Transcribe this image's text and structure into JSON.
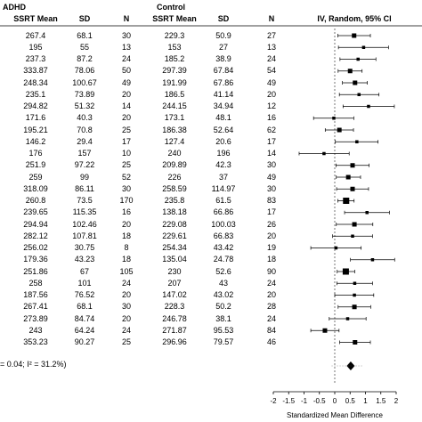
{
  "headers": {
    "group1": "ADHD",
    "group2": "Control",
    "col_mean1": "SSRT Mean",
    "col_sd1": "SD",
    "col_n1": "N",
    "col_mean2": "SSRT Mean",
    "col_sd2": "SD",
    "col_n2": "N",
    "col_ci": "IV, Random, 95% CI"
  },
  "heterogeneity_text": "= 0.04; I² = 31.2%)",
  "chart_data": {
    "type": "forest",
    "xlabel": "Standardized Mean Difference",
    "xlim": [
      -2,
      2
    ],
    "xticks": [
      -2,
      -1.5,
      -1,
      -0.5,
      0,
      0.5,
      1,
      1.5,
      2
    ],
    "xtick_labels": [
      "-2",
      "-1.5",
      "-1",
      "-0.5",
      "0",
      "0.5",
      "1",
      "1.5",
      "2"
    ],
    "rows": [
      {
        "m1": "267.4",
        "sd1": "68.1",
        "n1": "30",
        "m2": "229.3",
        "sd2": "50.9",
        "n2": "27",
        "est": 0.63,
        "lo": 0.1,
        "hi": 1.16,
        "w": "m"
      },
      {
        "m1": "195",
        "sd1": "55",
        "n1": "13",
        "m2": "153",
        "sd2": "27",
        "n2": "13",
        "est": 0.94,
        "lo": 0.12,
        "hi": 1.75,
        "w": "s"
      },
      {
        "m1": "237.3",
        "sd1": "87.2",
        "n1": "24",
        "m2": "185.2",
        "sd2": "38.9",
        "n2": "24",
        "est": 0.76,
        "lo": 0.17,
        "hi": 1.34,
        "w": "s"
      },
      {
        "m1": "333.87",
        "sd1": "78.06",
        "n1": "50",
        "m2": "297.39",
        "sd2": "67.84",
        "n2": "54",
        "est": 0.5,
        "lo": 0.11,
        "hi": 0.89,
        "w": "m"
      },
      {
        "m1": "248.34",
        "sd1": "100.67",
        "n1": "49",
        "m2": "191.99",
        "sd2": "67.86",
        "n2": "49",
        "est": 0.66,
        "lo": 0.25,
        "hi": 1.06,
        "w": "m"
      },
      {
        "m1": "235.1",
        "sd1": "73.89",
        "n1": "20",
        "m2": "186.5",
        "sd2": "41.14",
        "n2": "20",
        "est": 0.79,
        "lo": 0.15,
        "hi": 1.44,
        "w": "s"
      },
      {
        "m1": "294.82",
        "sd1": "51.32",
        "n1": "14",
        "m2": "244.15",
        "sd2": "34.94",
        "n2": "12",
        "est": 1.1,
        "lo": 0.27,
        "hi": 1.94,
        "w": "s"
      },
      {
        "m1": "171.6",
        "sd1": "40.3",
        "n1": "20",
        "m2": "173.1",
        "sd2": "48.1",
        "n2": "16",
        "est": -0.03,
        "lo": -0.69,
        "hi": 0.62,
        "w": "s"
      },
      {
        "m1": "195.21",
        "sd1": "70.8",
        "n1": "25",
        "m2": "186.38",
        "sd2": "52.64",
        "n2": "62",
        "est": 0.15,
        "lo": -0.31,
        "hi": 0.61,
        "w": "m"
      },
      {
        "m1": "146.2",
        "sd1": "29.4",
        "n1": "17",
        "m2": "127.4",
        "sd2": "20.6",
        "n2": "17",
        "est": 0.72,
        "lo": 0.02,
        "hi": 1.41,
        "w": "s"
      },
      {
        "m1": "176",
        "sd1": "157",
        "n1": "10",
        "m2": "240",
        "sd2": "196",
        "n2": "14",
        "est": -0.35,
        "lo": -1.16,
        "hi": 0.47,
        "w": "s"
      },
      {
        "m1": "251.9",
        "sd1": "97.22",
        "n1": "25",
        "m2": "209.89",
        "sd2": "42.3",
        "n2": "30",
        "est": 0.58,
        "lo": 0.04,
        "hi": 1.12,
        "w": "m"
      },
      {
        "m1": "259",
        "sd1": "99",
        "n1": "52",
        "m2": "226",
        "sd2": "37",
        "n2": "49",
        "est": 0.44,
        "lo": 0.05,
        "hi": 0.84,
        "w": "m"
      },
      {
        "m1": "318.09",
        "sd1": "86.11",
        "n1": "30",
        "m2": "258.59",
        "sd2": "114.97",
        "n2": "30",
        "est": 0.58,
        "lo": 0.06,
        "hi": 1.1,
        "w": "m"
      },
      {
        "m1": "260.8",
        "sd1": "73.5",
        "n1": "170",
        "m2": "235.8",
        "sd2": "61.5",
        "n2": "83",
        "est": 0.37,
        "lo": 0.1,
        "hi": 0.63,
        "w": "l"
      },
      {
        "m1": "239.65",
        "sd1": "115.35",
        "n1": "16",
        "m2": "138.18",
        "sd2": "66.86",
        "n2": "17",
        "est": 1.05,
        "lo": 0.32,
        "hi": 1.78,
        "w": "s"
      },
      {
        "m1": "294.94",
        "sd1": "102.46",
        "n1": "20",
        "m2": "229.08",
        "sd2": "100.03",
        "n2": "26",
        "est": 0.64,
        "lo": 0.05,
        "hi": 1.24,
        "w": "m"
      },
      {
        "m1": "282.12",
        "sd1": "107.81",
        "n1": "18",
        "m2": "229.61",
        "sd2": "66.83",
        "n2": "20",
        "est": 0.58,
        "lo": -0.07,
        "hi": 1.23,
        "w": "s"
      },
      {
        "m1": "256.02",
        "sd1": "30.75",
        "n1": "8",
        "m2": "254.34",
        "sd2": "43.42",
        "n2": "19",
        "est": 0.04,
        "lo": -0.78,
        "hi": 0.86,
        "w": "s"
      },
      {
        "m1": "179.36",
        "sd1": "43.23",
        "n1": "18",
        "m2": "135.04",
        "sd2": "24.78",
        "n2": "18",
        "est": 1.23,
        "lo": 0.51,
        "hi": 1.95,
        "w": "s"
      },
      {
        "m1": "251.86",
        "sd1": "67",
        "n1": "105",
        "m2": "230",
        "sd2": "52.6",
        "n2": "90",
        "est": 0.36,
        "lo": 0.08,
        "hi": 0.65,
        "w": "l"
      },
      {
        "m1": "258",
        "sd1": "101",
        "n1": "24",
        "m2": "207",
        "sd2": "43",
        "n2": "24",
        "est": 0.65,
        "lo": 0.07,
        "hi": 1.23,
        "w": "s"
      },
      {
        "m1": "187.56",
        "sd1": "76.52",
        "n1": "20",
        "m2": "147.02",
        "sd2": "43.02",
        "n2": "20",
        "est": 0.64,
        "lo": 0.0,
        "hi": 1.27,
        "w": "s"
      },
      {
        "m1": "267.41",
        "sd1": "68.1",
        "n1": "30",
        "m2": "228.3",
        "sd2": "50.2",
        "n2": "28",
        "est": 0.64,
        "lo": 0.11,
        "hi": 1.17,
        "w": "m"
      },
      {
        "m1": "273.89",
        "sd1": "84.74",
        "n1": "20",
        "m2": "246.78",
        "sd2": "38.1",
        "n2": "24",
        "est": 0.42,
        "lo": -0.18,
        "hi": 1.02,
        "w": "s"
      },
      {
        "m1": "243",
        "sd1": "64.24",
        "n1": "24",
        "m2": "271.87",
        "sd2": "95.53",
        "n2": "84",
        "est": -0.32,
        "lo": -0.78,
        "hi": 0.14,
        "w": "m"
      },
      {
        "m1": "353.23",
        "sd1": "90.27",
        "n1": "25",
        "m2": "296.96",
        "sd2": "79.57",
        "n2": "46",
        "est": 0.66,
        "lo": 0.16,
        "hi": 1.16,
        "w": "m"
      }
    ],
    "overall": {
      "est": 0.52,
      "lo": 0.39,
      "hi": 0.65
    }
  }
}
